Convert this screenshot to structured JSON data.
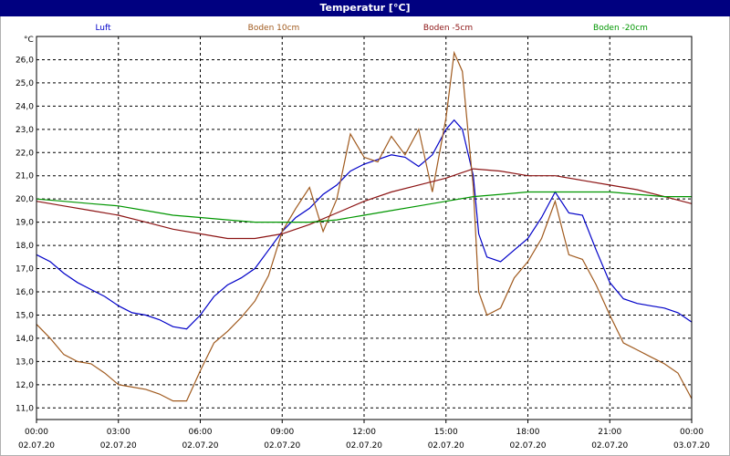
{
  "window": {
    "title": "Temperatur [°C]"
  },
  "chart_data": {
    "type": "line",
    "title": "Temperatur [°C]",
    "ylabel": "°C",
    "xlabel": "",
    "ylim": [
      10.5,
      27.0
    ],
    "yticks": [
      "11,0",
      "12,0",
      "13,0",
      "14,0",
      "15,0",
      "16,0",
      "17,0",
      "18,0",
      "19,0",
      "20,0",
      "21,0",
      "22,0",
      "23,0",
      "24,0",
      "25,0",
      "26,0"
    ],
    "xticks": [
      {
        "time": "00:00",
        "date": "02.07.20"
      },
      {
        "time": "03:00",
        "date": "02.07.20"
      },
      {
        "time": "06:00",
        "date": "02.07.20"
      },
      {
        "time": "09:00",
        "date": "02.07.20"
      },
      {
        "time": "12:00",
        "date": "02.07.20"
      },
      {
        "time": "15:00",
        "date": "02.07.20"
      },
      {
        "time": "18:00",
        "date": "02.07.20"
      },
      {
        "time": "21:00",
        "date": "02.07.20"
      },
      {
        "time": "00:00",
        "date": "03.07.20"
      }
    ],
    "grid": true,
    "legend_position": "top",
    "series": [
      {
        "name": "Luft",
        "color": "#0000c8",
        "points": [
          [
            0,
            17.6
          ],
          [
            0.5,
            17.3
          ],
          [
            1,
            16.8
          ],
          [
            1.5,
            16.4
          ],
          [
            2,
            16.1
          ],
          [
            2.5,
            15.8
          ],
          [
            3,
            15.4
          ],
          [
            3.5,
            15.1
          ],
          [
            4,
            15.0
          ],
          [
            4.5,
            14.8
          ],
          [
            5,
            14.5
          ],
          [
            5.5,
            14.4
          ],
          [
            6,
            15.0
          ],
          [
            6.5,
            15.8
          ],
          [
            7,
            16.3
          ],
          [
            7.5,
            16.6
          ],
          [
            8,
            17.0
          ],
          [
            8.5,
            17.8
          ],
          [
            9,
            18.6
          ],
          [
            9.5,
            19.2
          ],
          [
            10,
            19.6
          ],
          [
            10.5,
            20.2
          ],
          [
            11,
            20.6
          ],
          [
            11.5,
            21.2
          ],
          [
            12,
            21.5
          ],
          [
            12.5,
            21.7
          ],
          [
            13,
            21.9
          ],
          [
            13.5,
            21.8
          ],
          [
            14,
            21.4
          ],
          [
            14.5,
            21.9
          ],
          [
            15,
            23.0
          ],
          [
            15.3,
            23.4
          ],
          [
            15.6,
            23.0
          ],
          [
            16,
            21.0
          ],
          [
            16.2,
            18.5
          ],
          [
            16.5,
            17.5
          ],
          [
            17,
            17.3
          ],
          [
            17.5,
            17.8
          ],
          [
            18,
            18.3
          ],
          [
            18.5,
            19.2
          ],
          [
            19,
            20.3
          ],
          [
            19.5,
            19.4
          ],
          [
            20,
            19.3
          ],
          [
            20.5,
            17.8
          ],
          [
            21,
            16.4
          ],
          [
            21.5,
            15.7
          ],
          [
            22,
            15.5
          ],
          [
            22.5,
            15.4
          ],
          [
            23,
            15.3
          ],
          [
            23.5,
            15.1
          ],
          [
            24,
            14.7
          ]
        ]
      },
      {
        "name": "Boden 10cm",
        "color": "#a05a1e",
        "points": [
          [
            0,
            14.6
          ],
          [
            0.5,
            14.0
          ],
          [
            1,
            13.3
          ],
          [
            1.5,
            13.0
          ],
          [
            2,
            12.9
          ],
          [
            2.5,
            12.5
          ],
          [
            3,
            12.0
          ],
          [
            3.5,
            11.9
          ],
          [
            4,
            11.8
          ],
          [
            4.5,
            11.6
          ],
          [
            5,
            11.3
          ],
          [
            5.5,
            11.3
          ],
          [
            6,
            12.6
          ],
          [
            6.5,
            13.8
          ],
          [
            7,
            14.3
          ],
          [
            7.5,
            14.9
          ],
          [
            8,
            15.6
          ],
          [
            8.5,
            16.7
          ],
          [
            9,
            18.6
          ],
          [
            9.5,
            19.6
          ],
          [
            10,
            20.5
          ],
          [
            10.5,
            18.6
          ],
          [
            11,
            20.0
          ],
          [
            11.5,
            22.8
          ],
          [
            12,
            21.8
          ],
          [
            12.5,
            21.6
          ],
          [
            13,
            22.7
          ],
          [
            13.5,
            21.9
          ],
          [
            14,
            23.0
          ],
          [
            14.5,
            20.3
          ],
          [
            15,
            23.5
          ],
          [
            15.3,
            26.3
          ],
          [
            15.6,
            25.5
          ],
          [
            16,
            20.5
          ],
          [
            16.2,
            16.0
          ],
          [
            16.5,
            15.0
          ],
          [
            17,
            15.3
          ],
          [
            17.5,
            16.6
          ],
          [
            18,
            17.3
          ],
          [
            18.5,
            18.3
          ],
          [
            19,
            19.9
          ],
          [
            19.3,
            18.5
          ],
          [
            19.5,
            17.6
          ],
          [
            20,
            17.4
          ],
          [
            20.5,
            16.3
          ],
          [
            21,
            15.0
          ],
          [
            21.5,
            13.8
          ],
          [
            22,
            13.5
          ],
          [
            22.5,
            13.2
          ],
          [
            23,
            12.9
          ],
          [
            23.5,
            12.5
          ],
          [
            24,
            11.4
          ]
        ]
      },
      {
        "name": "Boden -5cm",
        "color": "#8c1414",
        "points": [
          [
            0,
            19.9
          ],
          [
            1,
            19.7
          ],
          [
            2,
            19.5
          ],
          [
            3,
            19.3
          ],
          [
            4,
            19.0
          ],
          [
            5,
            18.7
          ],
          [
            6,
            18.5
          ],
          [
            7,
            18.3
          ],
          [
            8,
            18.3
          ],
          [
            9,
            18.5
          ],
          [
            10,
            18.9
          ],
          [
            11,
            19.4
          ],
          [
            12,
            19.9
          ],
          [
            13,
            20.3
          ],
          [
            14,
            20.6
          ],
          [
            15,
            20.9
          ],
          [
            16,
            21.3
          ],
          [
            17,
            21.2
          ],
          [
            18,
            21.0
          ],
          [
            19,
            21.0
          ],
          [
            20,
            20.8
          ],
          [
            21,
            20.6
          ],
          [
            22,
            20.4
          ],
          [
            23,
            20.1
          ],
          [
            24,
            19.8
          ]
        ]
      },
      {
        "name": "Boden -20cm",
        "color": "#009600",
        "points": [
          [
            0,
            20.0
          ],
          [
            1,
            19.9
          ],
          [
            2,
            19.8
          ],
          [
            3,
            19.7
          ],
          [
            4,
            19.5
          ],
          [
            5,
            19.3
          ],
          [
            6,
            19.2
          ],
          [
            7,
            19.1
          ],
          [
            8,
            19.0
          ],
          [
            9,
            19.0
          ],
          [
            10,
            19.0
          ],
          [
            11,
            19.1
          ],
          [
            12,
            19.3
          ],
          [
            13,
            19.5
          ],
          [
            14,
            19.7
          ],
          [
            15,
            19.9
          ],
          [
            16,
            20.1
          ],
          [
            17,
            20.2
          ],
          [
            18,
            20.3
          ],
          [
            19,
            20.3
          ],
          [
            20,
            20.3
          ],
          [
            21,
            20.3
          ],
          [
            22,
            20.2
          ],
          [
            23,
            20.1
          ],
          [
            24,
            20.1
          ]
        ]
      }
    ]
  }
}
